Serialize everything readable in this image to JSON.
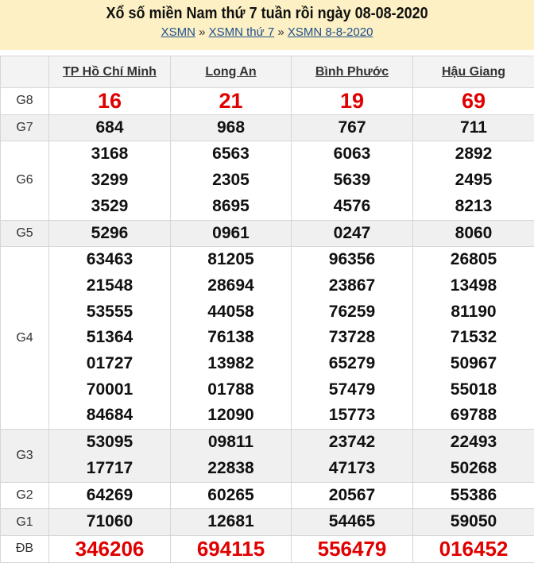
{
  "header": {
    "title": "Xổ số miền Nam thứ 7 tuần rồi ngày 08-08-2020",
    "breadcrumbs": [
      "XSMN",
      "XSMN thứ 7",
      "XSMN 8-8-2020"
    ],
    "separator": "»"
  },
  "table": {
    "provinces": [
      "TP Hồ Chí Minh",
      "Long An",
      "Bình Phước",
      "Hậu Giang"
    ],
    "rows": [
      {
        "label": "G8",
        "values": [
          [
            "16"
          ],
          [
            "21"
          ],
          [
            "19"
          ],
          [
            "69"
          ]
        ]
      },
      {
        "label": "G7",
        "values": [
          [
            "684"
          ],
          [
            "968"
          ],
          [
            "767"
          ],
          [
            "711"
          ]
        ]
      },
      {
        "label": "G6",
        "values": [
          [
            "3168",
            "3299",
            "3529"
          ],
          [
            "6563",
            "2305",
            "8695"
          ],
          [
            "6063",
            "5639",
            "4576"
          ],
          [
            "2892",
            "2495",
            "8213"
          ]
        ]
      },
      {
        "label": "G5",
        "values": [
          [
            "5296"
          ],
          [
            "0961"
          ],
          [
            "0247"
          ],
          [
            "8060"
          ]
        ]
      },
      {
        "label": "G4",
        "values": [
          [
            "63463",
            "21548",
            "53555",
            "51364",
            "01727",
            "70001",
            "84684"
          ],
          [
            "81205",
            "28694",
            "44058",
            "76138",
            "13982",
            "01788",
            "12090"
          ],
          [
            "96356",
            "23867",
            "76259",
            "73728",
            "65279",
            "57479",
            "15773"
          ],
          [
            "26805",
            "13498",
            "81190",
            "71532",
            "50967",
            "55018",
            "69788"
          ]
        ]
      },
      {
        "label": "G3",
        "values": [
          [
            "53095",
            "17717"
          ],
          [
            "09811",
            "22838"
          ],
          [
            "23742",
            "47173"
          ],
          [
            "22493",
            "50268"
          ]
        ]
      },
      {
        "label": "G2",
        "values": [
          [
            "64269"
          ],
          [
            "60265"
          ],
          [
            "20567"
          ],
          [
            "55386"
          ]
        ]
      },
      {
        "label": "G1",
        "values": [
          [
            "71060"
          ],
          [
            "12681"
          ],
          [
            "54465"
          ],
          [
            "59050"
          ]
        ]
      },
      {
        "label": "ĐB",
        "values": [
          [
            "346206"
          ],
          [
            "694115"
          ],
          [
            "556479"
          ],
          [
            "016452"
          ]
        ]
      }
    ]
  },
  "colors": {
    "highlight": "#e00000",
    "banner": "#fcf0c4",
    "link": "#1f4f8f"
  }
}
